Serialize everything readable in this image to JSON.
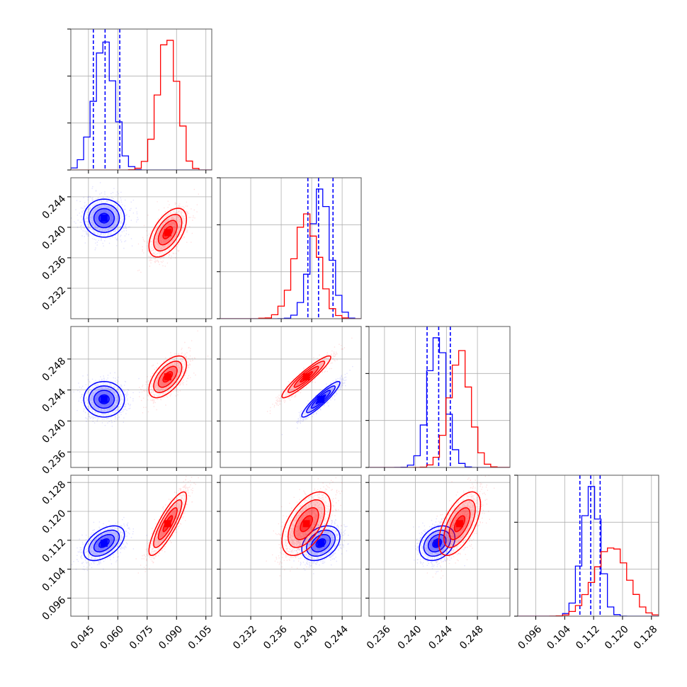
{
  "chart_data": {
    "type": "corner",
    "grid": true,
    "parameters": [
      {
        "range": [
          0.036,
          0.108
        ],
        "ticks": [
          "0.045",
          "0.060",
          "0.075",
          "0.090",
          "0.105"
        ]
      },
      {
        "range": [
          0.228,
          0.2465
        ],
        "ticks": [
          "0.232",
          "0.236",
          "0.240",
          "0.244"
        ]
      },
      {
        "range": [
          0.234,
          0.2522
        ],
        "ticks": [
          "0.236",
          "0.240",
          "0.244",
          "0.248"
        ]
      },
      {
        "range": [
          0.091,
          0.13
        ],
        "ticks": [
          "0.096",
          "0.104",
          "0.112",
          "0.120",
          "0.128"
        ]
      }
    ],
    "series": [
      {
        "color": "#0000ff",
        "means": [
          0.053,
          0.2412,
          0.2428,
          0.1112
        ],
        "sigmas": [
          0.0052,
          0.00125,
          0.00115,
          0.0024
        ],
        "correlations": [
          [
            1,
            0,
            1,
            3,
            0.0
          ],
          [
            2,
            0,
            1,
            3,
            0.0
          ],
          [
            2,
            1,
            0,
            1,
            0.92
          ],
          [
            3,
            0,
            0,
            1,
            0.5
          ],
          [
            3,
            1,
            0,
            1,
            0.35
          ],
          [
            3,
            2,
            0,
            1,
            0.3
          ]
        ],
        "quantile_lines": {
          "0": [
            0.0475,
            0.0535,
            0.061
          ],
          "1": [
            0.2395,
            0.2409,
            0.2428
          ],
          "2": [
            0.2415,
            0.243,
            0.2445
          ],
          "3": [
            0.1082,
            0.1112,
            0.1138
          ]
        }
      },
      {
        "color": "#ff0000",
        "means": [
          0.0855,
          0.2393,
          0.2457
        ],
        "means_extra": [
          0.1166
        ],
        "sigmas": [
          0.0048,
          0.0016,
          0.00135,
          0.0044
        ],
        "correlations": [
          [
            1,
            0,
            0,
            1,
            0.55
          ],
          [
            2,
            0,
            0,
            1,
            0.6
          ],
          [
            2,
            1,
            0,
            1,
            0.93
          ],
          [
            3,
            0,
            0,
            1,
            0.85
          ],
          [
            3,
            1,
            0,
            1,
            0.55
          ],
          [
            3,
            2,
            0,
            1,
            0.6
          ]
        ]
      }
    ],
    "y_tick_labels": {
      "1": [
        "0.232",
        "0.236",
        "0.240",
        "0.244"
      ],
      "2": [
        "0.236",
        "0.240",
        "0.244",
        "0.248"
      ],
      "3": [
        "0.096",
        "0.104",
        "0.112",
        "0.120",
        "0.128"
      ]
    }
  }
}
